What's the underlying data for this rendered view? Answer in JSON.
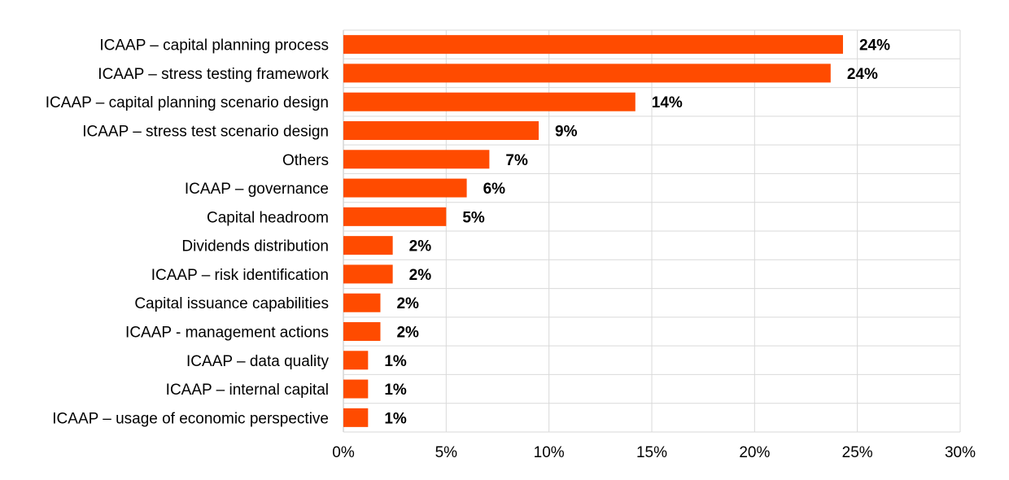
{
  "chart_data": {
    "type": "bar",
    "orientation": "horizontal",
    "title": "",
    "xlabel": "",
    "ylabel": "",
    "xlim": [
      0,
      30
    ],
    "x_ticks": [
      0,
      5,
      10,
      15,
      20,
      25,
      30
    ],
    "x_tick_labels": [
      "0%",
      "5%",
      "10%",
      "15%",
      "20%",
      "25%",
      "30%"
    ],
    "grid": true,
    "legend": "none",
    "bar_color": "#ff4b00",
    "categories": [
      "ICAAP – capital planning process",
      "ICAAP – stress testing framework",
      "ICAAP – capital planning scenario design",
      "ICAAP – stress test scenario design",
      "Others",
      "ICAAP – governance",
      "Capital headroom",
      "Dividends distribution",
      "ICAAP – risk identification",
      "Capital issuance capabilities",
      "ICAAP - management actions",
      "ICAAP – data quality",
      "ICAAP – internal capital",
      "ICAAP – usage of economic perspective"
    ],
    "values": [
      24.3,
      23.7,
      14.2,
      9.5,
      7.1,
      6.0,
      5.0,
      2.4,
      2.4,
      1.8,
      1.8,
      1.2,
      1.2,
      1.2
    ],
    "value_labels": [
      "24%",
      "24%",
      "14%",
      "9%",
      "7%",
      "6%",
      "5%",
      "2%",
      "2%",
      "2%",
      "2%",
      "1%",
      "1%",
      "1%"
    ]
  }
}
